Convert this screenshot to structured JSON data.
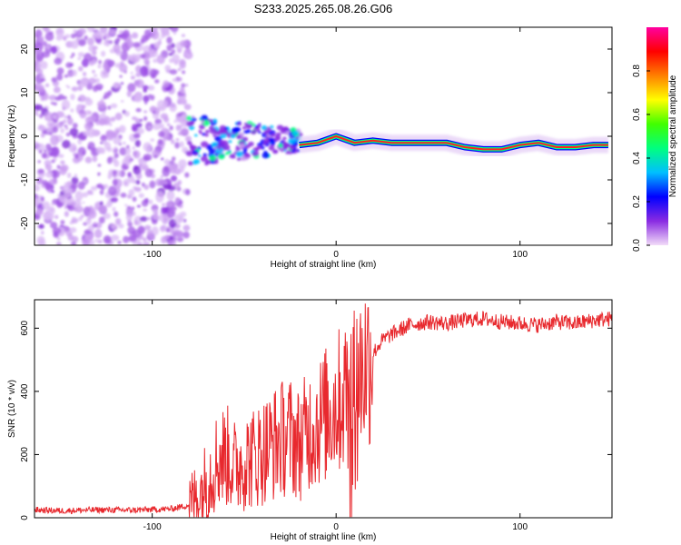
{
  "title": "S233.2025.265.08.26.G06",
  "colorbar": {
    "label": "Normalized spectral amplitude",
    "ticks": [
      "0.0",
      "0.2",
      "0.4",
      "0.6",
      "0.8"
    ],
    "stops": [
      "#f2dcf8",
      "#8a2be2",
      "#0000ff",
      "#00bfff",
      "#00ff80",
      "#40ff00",
      "#ffff00",
      "#ff8000",
      "#ff0000",
      "#ff00a0"
    ]
  },
  "chart_data": [
    {
      "type": "heatmap",
      "title": "S233.2025.265.08.26.G06",
      "xlabel": "Height of straight line (km)",
      "ylabel": "Frequency (Hz)",
      "xlim": [
        -164,
        150
      ],
      "ylim": [
        -25,
        25
      ],
      "xticks": [
        -100,
        0,
        100
      ],
      "xtick_labels": [
        "-100",
        "0",
        "100"
      ],
      "yticks": [
        -20,
        -10,
        0,
        10,
        20
      ],
      "ytick_labels": [
        "-20",
        "-10",
        "0",
        "10",
        "20"
      ],
      "colorbar_label": "Normalized spectral amplitude",
      "ridge": {
        "x": [
          -20,
          -10,
          0,
          10,
          20,
          30,
          40,
          50,
          60,
          70,
          80,
          90,
          100,
          110,
          120,
          130,
          140,
          148
        ],
        "y": [
          -2,
          -1.5,
          0,
          -1.5,
          -1,
          -1.5,
          -1.5,
          -1.5,
          -1.5,
          -2.5,
          -3,
          -3,
          -2,
          -1.5,
          -2.5,
          -2.5,
          -2,
          -2
        ]
      }
    },
    {
      "type": "line",
      "xlabel": "Height of straight line (km)",
      "ylabel": "SNR (10 * v/v)",
      "xlim": [
        -164,
        150
      ],
      "ylim": [
        0,
        690
      ],
      "xticks": [
        -100,
        0,
        100
      ],
      "xtick_labels": [
        "-100",
        "0",
        "100"
      ],
      "yticks": [
        0,
        200,
        400,
        600
      ],
      "ytick_labels": [
        "0",
        "200",
        "400",
        "600"
      ],
      "series": [
        {
          "name": "SNR",
          "color": "#e8292e",
          "x": [
            -164,
            -150,
            -130,
            -110,
            -90,
            -80,
            -75,
            -70,
            -65,
            -60,
            -55,
            -50,
            -45,
            -40,
            -35,
            -30,
            -25,
            -20,
            -15,
            -10,
            -5,
            0,
            5,
            10,
            15,
            20,
            25,
            30,
            40,
            50,
            60,
            70,
            80,
            90,
            100,
            110,
            120,
            130,
            140,
            150
          ],
          "y": [
            25,
            22,
            25,
            24,
            28,
            40,
            70,
            120,
            180,
            200,
            160,
            180,
            190,
            210,
            230,
            250,
            260,
            230,
            280,
            300,
            330,
            360,
            390,
            420,
            480,
            520,
            560,
            580,
            610,
            620,
            615,
            625,
            630,
            620,
            615,
            610,
            620,
            615,
            625,
            630
          ]
        }
      ]
    }
  ]
}
